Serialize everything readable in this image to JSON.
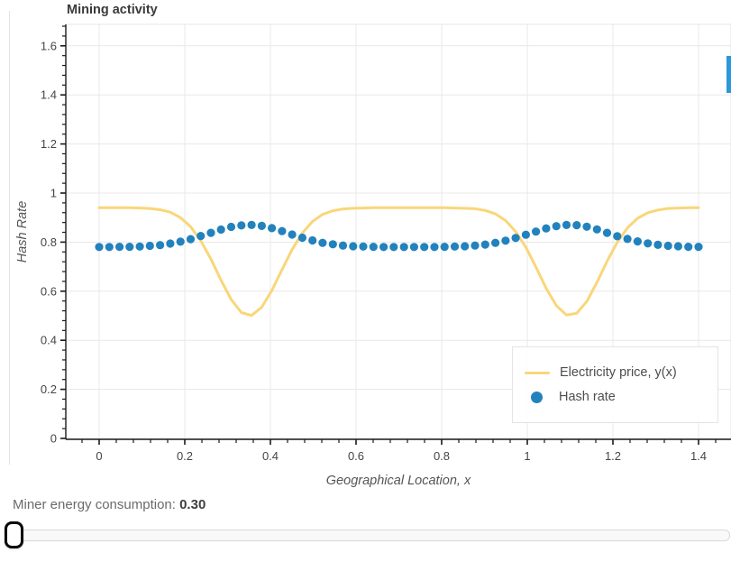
{
  "title": "Mining activity",
  "chart_data": {
    "type": "line",
    "title": "Mining activity",
    "xlabel": "Geographical Location, x",
    "ylabel": "Hash Rate",
    "xlim": [
      -0.0779,
      1.4758
    ],
    "ylim": [
      -0.0037,
      1.6875
    ],
    "grid": true,
    "legend_position": "bottom-right",
    "xticks": [
      0,
      0.2,
      0.4,
      0.6,
      0.8,
      1,
      1.2,
      1.4
    ],
    "xtick_labels": [
      "0",
      "0.2",
      "0.4",
      "0.6",
      "0.8",
      "1",
      "1.2",
      "1.4"
    ],
    "yticks": [
      0,
      0.2,
      0.4,
      0.6,
      0.8,
      1,
      1.2,
      1.4,
      1.6
    ],
    "ytick_labels": [
      "0",
      "0.2",
      "0.4",
      "0.6",
      "0.8",
      "1",
      "1.2",
      "1.4",
      "1.6"
    ],
    "minor_tick_step": 0.04,
    "x": [
      0,
      0.0237,
      0.0475,
      0.0712,
      0.0949,
      0.1186,
      0.1424,
      0.1661,
      0.1898,
      0.2136,
      0.2373,
      0.261,
      0.2847,
      0.3085,
      0.3322,
      0.3559,
      0.3797,
      0.4034,
      0.4271,
      0.4508,
      0.4746,
      0.4983,
      0.522,
      0.5458,
      0.5695,
      0.5932,
      0.6169,
      0.6407,
      0.6644,
      0.6881,
      0.7119,
      0.7356,
      0.7593,
      0.7831,
      0.8068,
      0.8305,
      0.8542,
      0.878,
      0.9017,
      0.9254,
      0.9492,
      0.9729,
      0.9966,
      1.0203,
      1.0441,
      1.0678,
      1.0915,
      1.1153,
      1.139,
      1.1627,
      1.1864,
      1.2102,
      1.2339,
      1.2576,
      1.2814,
      1.3051,
      1.3288,
      1.3525,
      1.3763,
      1.4
    ],
    "series": [
      {
        "name": "Electricity price, y(x)",
        "glyph": "line",
        "color": "#f9d679",
        "line_width": 3,
        "values": [
          0.94,
          0.94,
          0.94,
          0.94,
          0.939,
          0.937,
          0.932,
          0.922,
          0.9,
          0.863,
          0.806,
          0.731,
          0.645,
          0.566,
          0.513,
          0.501,
          0.535,
          0.603,
          0.688,
          0.77,
          0.837,
          0.884,
          0.913,
          0.928,
          0.935,
          0.938,
          0.939,
          0.94,
          0.94,
          0.94,
          0.94,
          0.94,
          0.94,
          0.94,
          0.94,
          0.939,
          0.938,
          0.936,
          0.929,
          0.915,
          0.888,
          0.843,
          0.779,
          0.698,
          0.612,
          0.541,
          0.503,
          0.51,
          0.558,
          0.636,
          0.722,
          0.799,
          0.858,
          0.897,
          0.92,
          0.931,
          0.937,
          0.939,
          0.94,
          0.94
        ]
      },
      {
        "name": "Hash rate",
        "glyph": "scatter",
        "color": "#2282bd",
        "dot_radius": 4.6,
        "values": [
          0.78,
          0.78,
          0.781,
          0.781,
          0.782,
          0.785,
          0.788,
          0.794,
          0.802,
          0.812,
          0.825,
          0.838,
          0.851,
          0.862,
          0.868,
          0.87,
          0.866,
          0.857,
          0.845,
          0.831,
          0.818,
          0.807,
          0.797,
          0.791,
          0.786,
          0.783,
          0.782,
          0.781,
          0.78,
          0.78,
          0.78,
          0.78,
          0.78,
          0.78,
          0.781,
          0.782,
          0.783,
          0.786,
          0.79,
          0.797,
          0.806,
          0.817,
          0.83,
          0.843,
          0.856,
          0.865,
          0.87,
          0.869,
          0.863,
          0.852,
          0.838,
          0.824,
          0.813,
          0.803,
          0.795,
          0.789,
          0.785,
          0.783,
          0.781,
          0.781
        ]
      }
    ]
  },
  "legend": {
    "items": [
      {
        "label": "Electricity price, y(x)",
        "swatch": "line",
        "color": "#f9d679"
      },
      {
        "label": "Hash rate",
        "swatch": "circle",
        "color": "#2282bd"
      }
    ]
  },
  "controls": {
    "energy_label": "Miner energy consumption: ",
    "energy_value": "0.30",
    "slider_position": "min"
  },
  "colors": {
    "grid": "#e8e8e8",
    "frame_outline": "#e5e5e5",
    "axis": "#1a1a1a",
    "tick_label": "#454545",
    "axis_label": "#555555",
    "title": "#3a3a3a",
    "scroll_thumb": "#2b98d9"
  }
}
